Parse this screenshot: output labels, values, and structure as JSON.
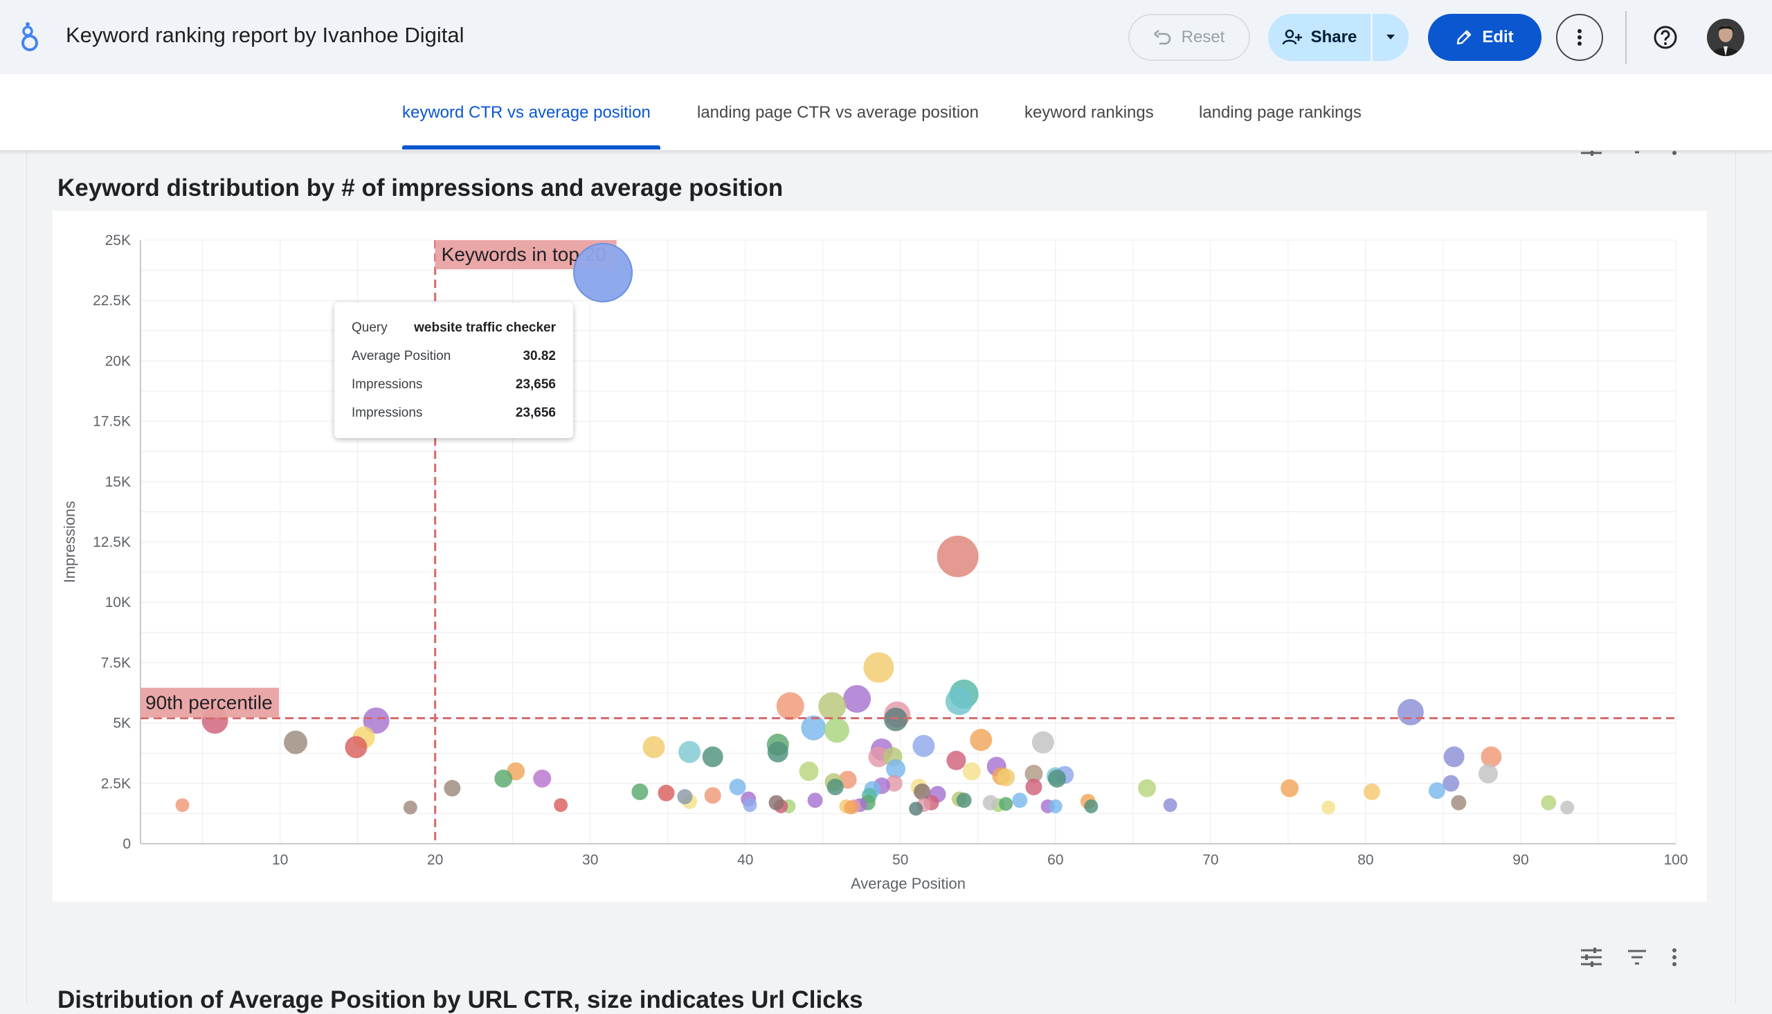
{
  "header": {
    "title": "Keyword ranking report by Ivanhoe Digital",
    "reset_label": "Reset",
    "share_label": "Share",
    "edit_label": "Edit"
  },
  "tabs": [
    {
      "label": "keyword CTR vs average position",
      "active": true
    },
    {
      "label": "landing page CTR vs average position",
      "active": false
    },
    {
      "label": "keyword rankings",
      "active": false
    },
    {
      "label": "landing page rankings",
      "active": false
    }
  ],
  "colors": {
    "accent": "#0b57d0",
    "reference_line": "#d46a6a",
    "reference_label_bg": "#e8a0a0"
  },
  "icons": [
    "logo-icon",
    "undo-icon",
    "add-person-icon",
    "caret-down-icon",
    "pencil-icon",
    "more-vert-icon",
    "help-icon",
    "tune-icon",
    "filter-icon"
  ],
  "chart1": {
    "title": "Keyword distribution by # of impressions and average position"
  },
  "chart2": {
    "title": "Distribution of Average Position by URL CTR, size indicates Url Clicks"
  },
  "tooltip": {
    "query_label": "Query",
    "query_value": "website traffic checker",
    "rows": [
      {
        "label": "Average Position",
        "value": "30.82"
      },
      {
        "label": "Impressions",
        "value": "23,656"
      },
      {
        "label": "Impressions",
        "value": "23,656"
      }
    ]
  },
  "chart_data": {
    "type": "scatter",
    "title": "Keyword distribution by # of impressions and average position",
    "xlabel": "Average Position",
    "ylabel": "Impressions",
    "xlim": [
      1,
      100
    ],
    "ylim": [
      0,
      25000
    ],
    "x_ticks": [
      10,
      20,
      30,
      40,
      50,
      60,
      70,
      80,
      90,
      100
    ],
    "y_ticks": [
      0,
      2500,
      5000,
      7500,
      10000,
      12500,
      15000,
      17500,
      20000,
      22500,
      25000
    ],
    "y_tick_labels": [
      "0",
      "2.5K",
      "5K",
      "7.5K",
      "10K",
      "12.5K",
      "15K",
      "17.5K",
      "20K",
      "22.5K",
      "25K"
    ],
    "grid": true,
    "bubble_size_encodes": "Impressions",
    "reference_lines": [
      {
        "axis": "x",
        "value": 20,
        "label": "Keywords in top 20"
      },
      {
        "axis": "y",
        "value": 5200,
        "label": "90th percentile"
      }
    ],
    "points": [
      {
        "x": 30.8,
        "y": 23656,
        "r": 42,
        "c": "#8ea8ec"
      },
      {
        "x": 53.7,
        "y": 11900,
        "r": 30,
        "c": "#de8478"
      },
      {
        "x": 48.6,
        "y": 7300,
        "r": 22,
        "c": "#f2cc6e"
      },
      {
        "x": 54.1,
        "y": 6200,
        "r": 21,
        "c": "#55b8a6"
      },
      {
        "x": 53.8,
        "y": 5900,
        "r": 20,
        "c": "#6ec3cc"
      },
      {
        "x": 47.2,
        "y": 6000,
        "r": 20,
        "c": "#a773cf"
      },
      {
        "x": 42.9,
        "y": 5700,
        "r": 20,
        "c": "#f09878"
      },
      {
        "x": 45.6,
        "y": 5700,
        "r": 20,
        "c": "#b8c779"
      },
      {
        "x": 49.8,
        "y": 5350,
        "r": 19,
        "c": "#e39aa8"
      },
      {
        "x": 49.7,
        "y": 5150,
        "r": 17,
        "c": "#5a7f7b"
      },
      {
        "x": 44.4,
        "y": 4800,
        "r": 18,
        "c": "#7ab8ec"
      },
      {
        "x": 45.9,
        "y": 4700,
        "r": 18,
        "c": "#a8d47c"
      },
      {
        "x": 82.9,
        "y": 5450,
        "r": 19,
        "c": "#8b8fd6"
      },
      {
        "x": 5.8,
        "y": 5100,
        "r": 19,
        "c": "#d0607a"
      },
      {
        "x": 16.2,
        "y": 5100,
        "r": 19,
        "c": "#a773cf"
      },
      {
        "x": 15.4,
        "y": 4400,
        "r": 16,
        "c": "#f5d56e"
      },
      {
        "x": 14.9,
        "y": 4000,
        "r": 16,
        "c": "#d95f5f"
      },
      {
        "x": 11.0,
        "y": 4200,
        "r": 17,
        "c": "#9c8a7e"
      },
      {
        "x": 34.1,
        "y": 4000,
        "r": 16,
        "c": "#f2cc6e"
      },
      {
        "x": 36.4,
        "y": 3800,
        "r": 16,
        "c": "#7ec9d2"
      },
      {
        "x": 37.9,
        "y": 3600,
        "r": 15,
        "c": "#4f917c"
      },
      {
        "x": 42.1,
        "y": 4100,
        "r": 16,
        "c": "#5ba86f"
      },
      {
        "x": 42.1,
        "y": 3800,
        "r": 15,
        "c": "#4f917c"
      },
      {
        "x": 48.8,
        "y": 3900,
        "r": 16,
        "c": "#a773cf"
      },
      {
        "x": 48.6,
        "y": 3600,
        "r": 15,
        "c": "#e39aa8"
      },
      {
        "x": 49.5,
        "y": 3600,
        "r": 14,
        "c": "#b8c779"
      },
      {
        "x": 49.7,
        "y": 3100,
        "r": 14,
        "c": "#7ab8ec"
      },
      {
        "x": 51.5,
        "y": 4050,
        "r": 16,
        "c": "#8ea8ec"
      },
      {
        "x": 55.2,
        "y": 4300,
        "r": 16,
        "c": "#f2a65a"
      },
      {
        "x": 53.6,
        "y": 3450,
        "r": 14,
        "c": "#d0607a"
      },
      {
        "x": 59.2,
        "y": 4200,
        "r": 16,
        "c": "#c2c2c2"
      },
      {
        "x": 56.2,
        "y": 3200,
        "r": 14,
        "c": "#a773cf"
      },
      {
        "x": 58.6,
        "y": 2900,
        "r": 13,
        "c": "#b09a84"
      },
      {
        "x": 60.0,
        "y": 2800,
        "r": 13,
        "c": "#7ec9d2"
      },
      {
        "x": 60.6,
        "y": 2850,
        "r": 13,
        "c": "#8ea8ec"
      },
      {
        "x": 60.1,
        "y": 2700,
        "r": 13,
        "c": "#4f917c"
      },
      {
        "x": 56.5,
        "y": 2800,
        "r": 13,
        "c": "#f2a65a"
      },
      {
        "x": 56.8,
        "y": 2750,
        "r": 13,
        "c": "#f2cc6e"
      },
      {
        "x": 54.6,
        "y": 3000,
        "r": 13,
        "c": "#f5e08a"
      },
      {
        "x": 58.6,
        "y": 2350,
        "r": 12,
        "c": "#d0607a"
      },
      {
        "x": 85.7,
        "y": 3600,
        "r": 15,
        "c": "#8b8fd6"
      },
      {
        "x": 88.1,
        "y": 3600,
        "r": 15,
        "c": "#f09878"
      },
      {
        "x": 87.9,
        "y": 2900,
        "r": 14,
        "c": "#c2c2c2"
      },
      {
        "x": 85.5,
        "y": 2500,
        "r": 12,
        "c": "#8b8fd6"
      },
      {
        "x": 84.6,
        "y": 2200,
        "r": 12,
        "c": "#7ab8ec"
      },
      {
        "x": 86.0,
        "y": 1700,
        "r": 11,
        "c": "#a08a7e"
      },
      {
        "x": 91.8,
        "y": 1700,
        "r": 11,
        "c": "#b8d47c"
      },
      {
        "x": 93.0,
        "y": 1500,
        "r": 10,
        "c": "#c2c2c2"
      },
      {
        "x": 75.1,
        "y": 2300,
        "r": 13,
        "c": "#f2a65a"
      },
      {
        "x": 80.4,
        "y": 2150,
        "r": 12,
        "c": "#f5c970"
      },
      {
        "x": 77.6,
        "y": 1500,
        "r": 10,
        "c": "#f5e08a"
      },
      {
        "x": 65.9,
        "y": 2300,
        "r": 13,
        "c": "#b8d47c"
      },
      {
        "x": 67.4,
        "y": 1600,
        "r": 10,
        "c": "#8b8fd6"
      },
      {
        "x": 62.1,
        "y": 1750,
        "r": 11,
        "c": "#f2a65a"
      },
      {
        "x": 62.3,
        "y": 1550,
        "r": 10,
        "c": "#4f917c"
      },
      {
        "x": 59.5,
        "y": 1550,
        "r": 10,
        "c": "#a773cf"
      },
      {
        "x": 60.0,
        "y": 1550,
        "r": 10,
        "c": "#7ab8ec"
      },
      {
        "x": 57.7,
        "y": 1800,
        "r": 11,
        "c": "#7ab8ec"
      },
      {
        "x": 56.3,
        "y": 1600,
        "r": 10,
        "c": "#a8d47c"
      },
      {
        "x": 56.8,
        "y": 1650,
        "r": 10,
        "c": "#5ba86f"
      },
      {
        "x": 55.8,
        "y": 1700,
        "r": 11,
        "c": "#c2c2c2"
      },
      {
        "x": 53.8,
        "y": 1850,
        "r": 11,
        "c": "#b8c779"
      },
      {
        "x": 54.1,
        "y": 1800,
        "r": 11,
        "c": "#4f917c"
      },
      {
        "x": 52.4,
        "y": 2050,
        "r": 12,
        "c": "#a773cf"
      },
      {
        "x": 52.0,
        "y": 1700,
        "r": 11,
        "c": "#d0607a"
      },
      {
        "x": 51.2,
        "y": 2350,
        "r": 12,
        "c": "#f5e08a"
      },
      {
        "x": 51.4,
        "y": 2150,
        "r": 12,
        "c": "#8a7070"
      },
      {
        "x": 51.5,
        "y": 1600,
        "r": 10,
        "c": "#e39aa8"
      },
      {
        "x": 51.0,
        "y": 1450,
        "r": 10,
        "c": "#5a7f7b"
      },
      {
        "x": 49.6,
        "y": 2500,
        "r": 12,
        "c": "#e39aa8"
      },
      {
        "x": 48.8,
        "y": 2400,
        "r": 12,
        "c": "#a773cf"
      },
      {
        "x": 48.2,
        "y": 2250,
        "r": 12,
        "c": "#7ab8ec"
      },
      {
        "x": 48.0,
        "y": 2000,
        "r": 11,
        "c": "#55b8a6"
      },
      {
        "x": 47.9,
        "y": 1700,
        "r": 11,
        "c": "#5ba86f"
      },
      {
        "x": 47.4,
        "y": 1600,
        "r": 10,
        "c": "#a773cf"
      },
      {
        "x": 47.0,
        "y": 1550,
        "r": 10,
        "c": "#e39aa8"
      },
      {
        "x": 46.6,
        "y": 2650,
        "r": 13,
        "c": "#f09878"
      },
      {
        "x": 46.5,
        "y": 1550,
        "r": 10,
        "c": "#f5c970"
      },
      {
        "x": 46.8,
        "y": 1500,
        "r": 10,
        "c": "#f2a65a"
      },
      {
        "x": 45.7,
        "y": 2550,
        "r": 13,
        "c": "#b8c779"
      },
      {
        "x": 45.8,
        "y": 2350,
        "r": 12,
        "c": "#4f917c"
      },
      {
        "x": 44.5,
        "y": 1800,
        "r": 11,
        "c": "#a773cf"
      },
      {
        "x": 44.1,
        "y": 3000,
        "r": 14,
        "c": "#b8d47c"
      },
      {
        "x": 42.8,
        "y": 1550,
        "r": 10,
        "c": "#a8d47c"
      },
      {
        "x": 42.3,
        "y": 1550,
        "r": 10,
        "c": "#d0607a"
      },
      {
        "x": 42.0,
        "y": 1700,
        "r": 11,
        "c": "#8a7070"
      },
      {
        "x": 40.2,
        "y": 1850,
        "r": 11,
        "c": "#a773cf"
      },
      {
        "x": 40.3,
        "y": 1600,
        "r": 10,
        "c": "#8ea8ec"
      },
      {
        "x": 39.5,
        "y": 2350,
        "r": 12,
        "c": "#7ab8ec"
      },
      {
        "x": 37.9,
        "y": 2000,
        "r": 12,
        "c": "#f09878"
      },
      {
        "x": 36.4,
        "y": 1750,
        "r": 11,
        "c": "#f5e08a"
      },
      {
        "x": 36.1,
        "y": 1950,
        "r": 11,
        "c": "#8a9aa8"
      },
      {
        "x": 34.9,
        "y": 2100,
        "r": 12,
        "c": "#d95f5f"
      },
      {
        "x": 33.2,
        "y": 2150,
        "r": 12,
        "c": "#5ba86f"
      },
      {
        "x": 28.1,
        "y": 1600,
        "r": 10,
        "c": "#d95f5f"
      },
      {
        "x": 26.9,
        "y": 2700,
        "r": 13,
        "c": "#b873cf"
      },
      {
        "x": 25.2,
        "y": 3000,
        "r": 13,
        "c": "#f2a65a"
      },
      {
        "x": 24.4,
        "y": 2700,
        "r": 13,
        "c": "#5ba86f"
      },
      {
        "x": 21.1,
        "y": 2300,
        "r": 12,
        "c": "#9c8a7e"
      },
      {
        "x": 18.4,
        "y": 1500,
        "r": 10,
        "c": "#a08a7e"
      },
      {
        "x": 3.7,
        "y": 1600,
        "r": 10,
        "c": "#f09878"
      }
    ]
  },
  "highlighted_point": {
    "query": "website traffic checker",
    "x": 30.82,
    "y": 23656
  }
}
